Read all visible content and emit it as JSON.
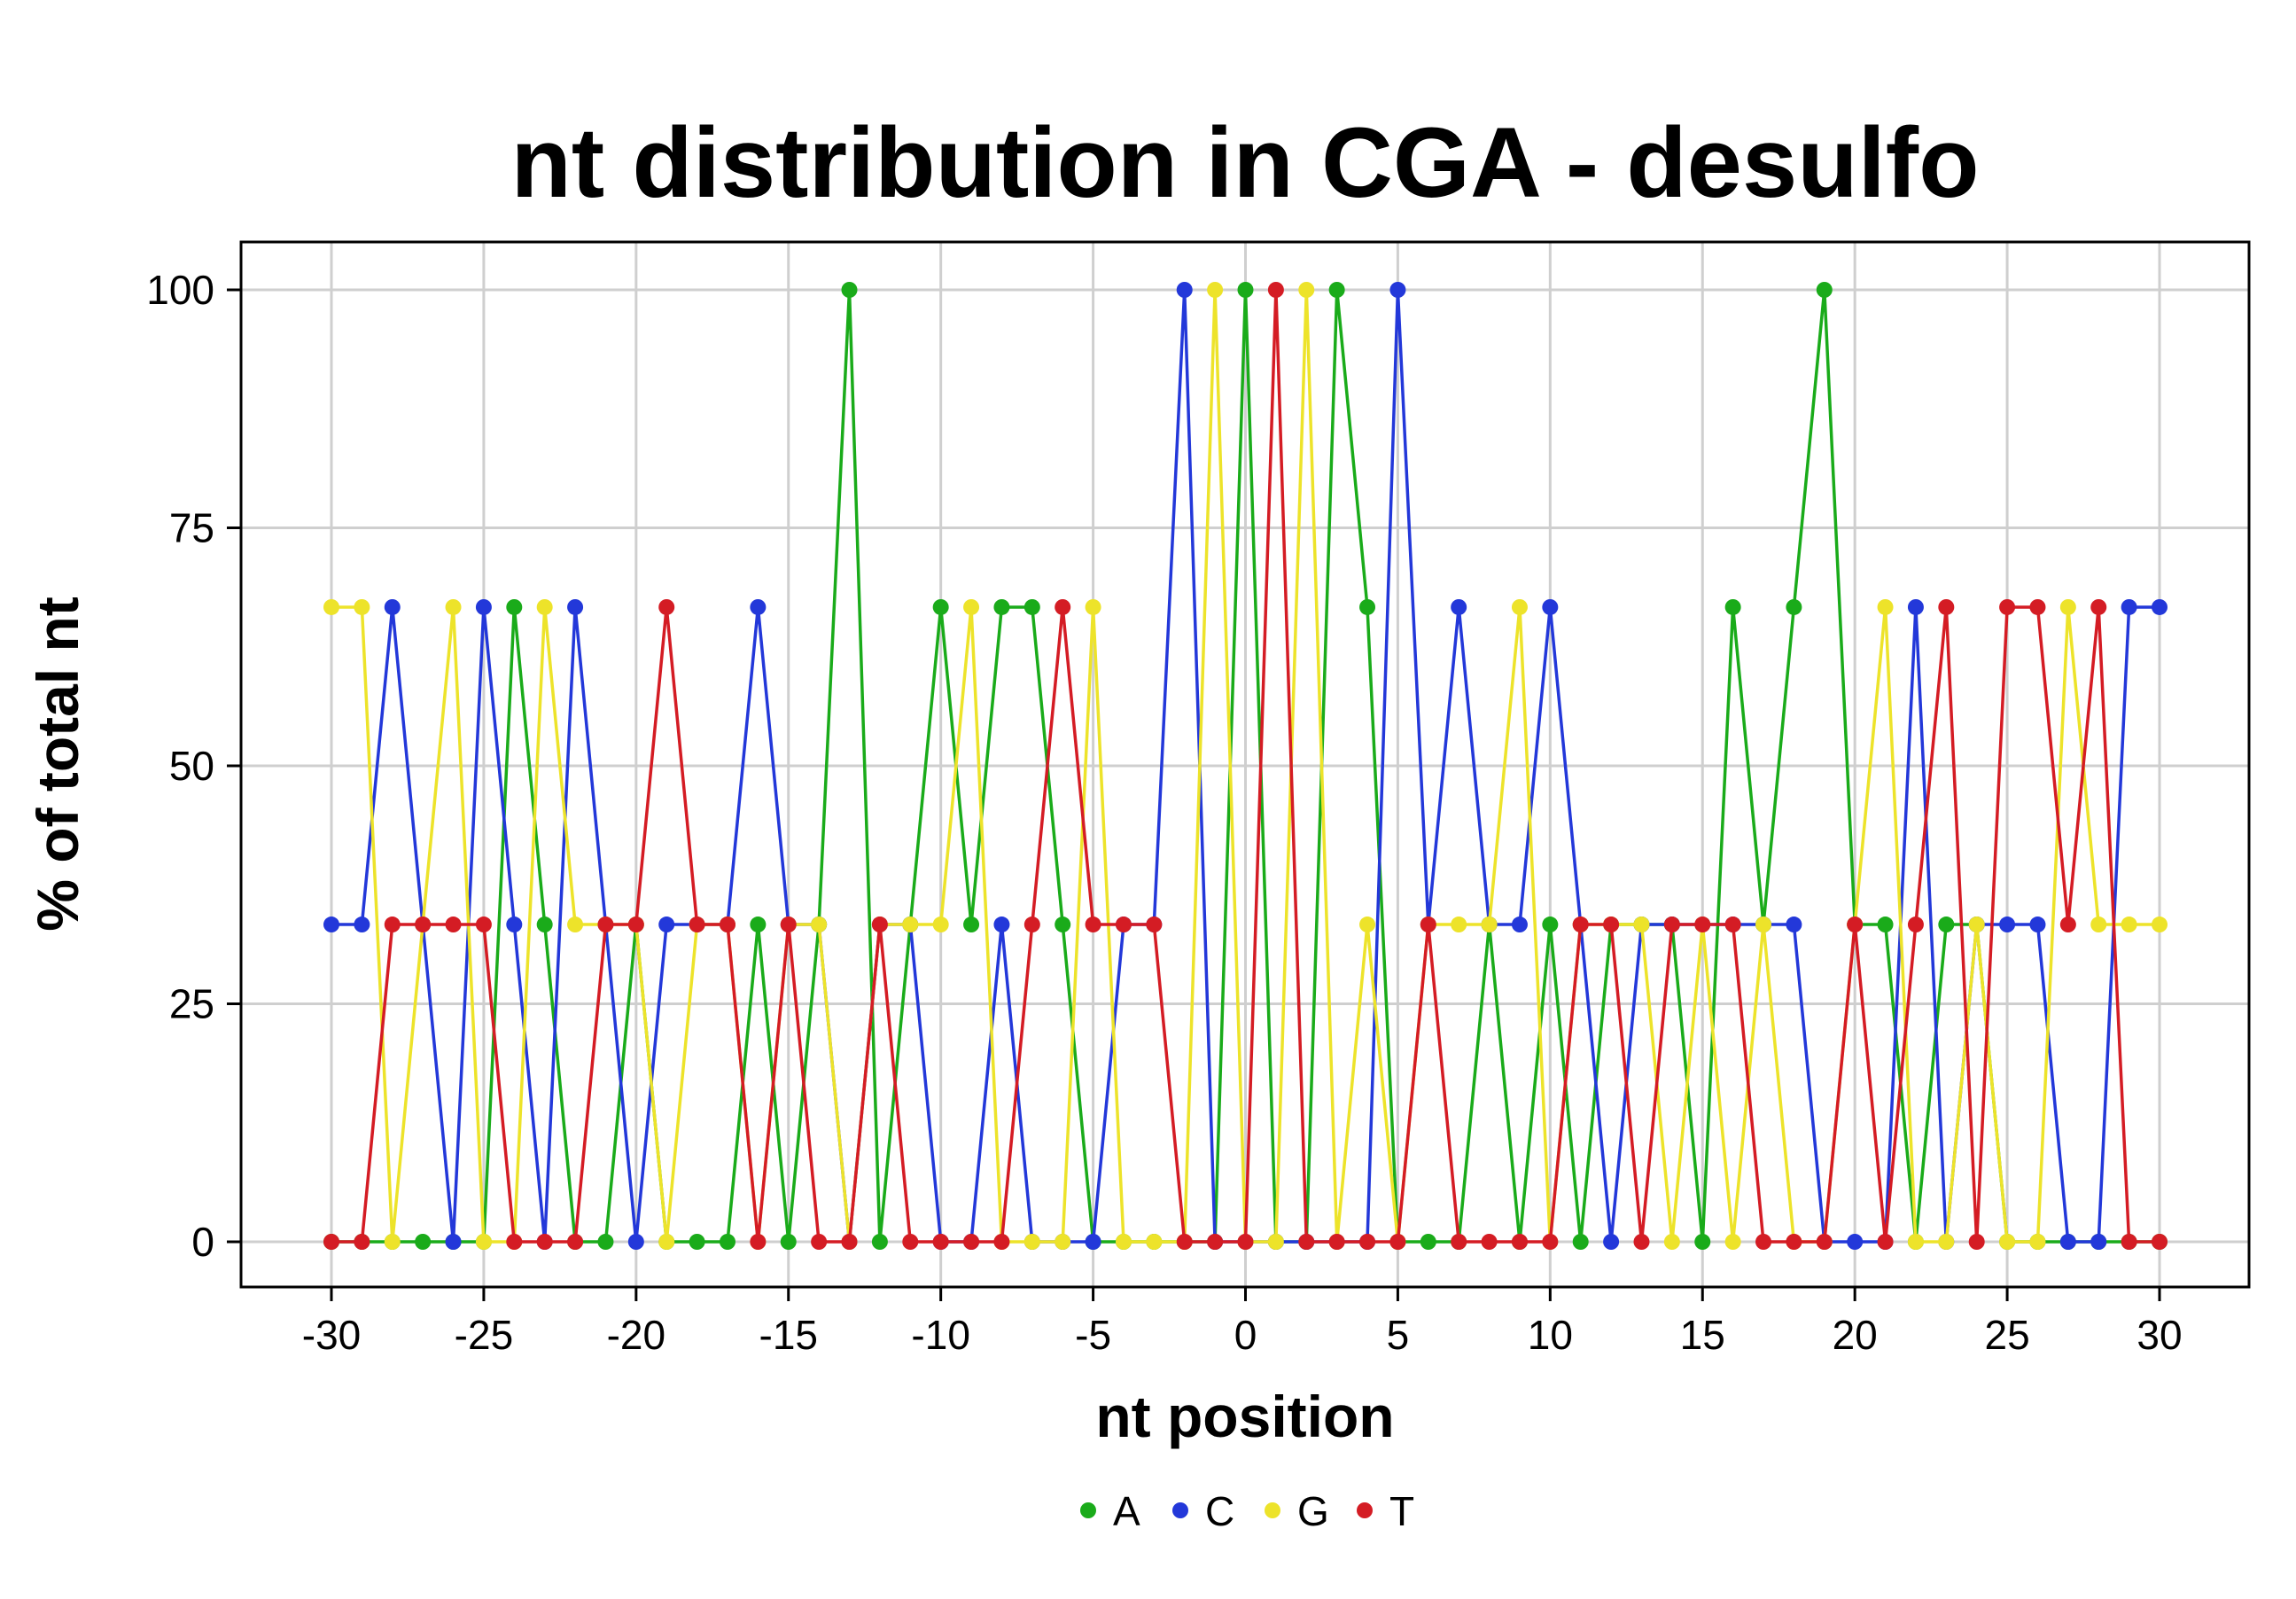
{
  "chart_data": {
    "type": "line",
    "title": "nt distribution in CGA - desulfo",
    "xlabel": "nt position",
    "ylabel": "% of total nt",
    "xlim": [
      -30,
      30
    ],
    "ylim": [
      0,
      100
    ],
    "xticks": [
      "-30",
      "-25",
      "-20",
      "-15",
      "-10",
      "-5",
      "0",
      "5",
      "10",
      "15",
      "20",
      "25",
      "30"
    ],
    "yticks": [
      "0",
      "25",
      "50",
      "75",
      "100"
    ],
    "grid": true,
    "legend_position": "bottom",
    "x": [
      -30,
      -29,
      -28,
      -27,
      -26,
      -25,
      -24,
      -23,
      -22,
      -21,
      -20,
      -19,
      -18,
      -17,
      -16,
      -15,
      -14,
      -13,
      -12,
      -11,
      -10,
      -9,
      -8,
      -7,
      -6,
      -5,
      -4,
      -3,
      -2,
      -1,
      0,
      1,
      2,
      3,
      4,
      5,
      6,
      7,
      8,
      9,
      10,
      11,
      12,
      13,
      14,
      15,
      16,
      17,
      18,
      19,
      20,
      21,
      22,
      23,
      24,
      25,
      26,
      27,
      28,
      29,
      30
    ],
    "series": [
      {
        "name": "A",
        "color": "#1aab1a",
        "values": [
          0,
          0,
          0,
          0,
          0,
          0,
          66.67,
          33.33,
          0,
          0,
          33.33,
          0,
          0,
          0,
          33.33,
          0,
          33.33,
          100,
          0,
          33.33,
          66.67,
          33.33,
          66.67,
          66.67,
          33.33,
          0,
          0,
          0,
          0,
          0,
          100,
          0,
          0,
          100,
          66.67,
          0,
          0,
          0,
          33.33,
          0,
          33.33,
          0,
          33.33,
          33.33,
          33.33,
          0,
          66.67,
          33.33,
          66.67,
          100,
          33.33,
          33.33,
          0,
          33.33,
          33.33,
          0,
          0,
          0,
          0,
          0,
          0
        ]
      },
      {
        "name": "C",
        "color": "#2338d9",
        "values": [
          33.33,
          33.33,
          66.67,
          33.33,
          0,
          66.67,
          33.33,
          0,
          66.67,
          33.33,
          0,
          33.33,
          33.33,
          33.33,
          66.67,
          33.33,
          33.33,
          0,
          33.33,
          33.33,
          0,
          0,
          33.33,
          0,
          0,
          0,
          33.33,
          33.33,
          100,
          0,
          0,
          0,
          0,
          0,
          0,
          100,
          33.33,
          66.67,
          33.33,
          33.33,
          66.67,
          33.33,
          0,
          33.33,
          33.33,
          33.33,
          33.33,
          33.33,
          33.33,
          0,
          0,
          0,
          66.67,
          0,
          33.33,
          33.33,
          33.33,
          0,
          0,
          66.67,
          66.67
        ]
      },
      {
        "name": "G",
        "color": "#ede32a",
        "values": [
          66.67,
          66.67,
          0,
          33.33,
          66.67,
          0,
          0,
          66.67,
          33.33,
          33.33,
          33.33,
          0,
          33.33,
          33.33,
          0,
          33.33,
          33.33,
          0,
          33.33,
          33.33,
          33.33,
          66.67,
          0,
          0,
          0,
          66.67,
          0,
          0,
          0,
          100,
          0,
          0,
          100,
          0,
          33.33,
          0,
          33.33,
          33.33,
          33.33,
          66.67,
          0,
          33.33,
          33.33,
          33.33,
          0,
          33.33,
          0,
          33.33,
          0,
          0,
          33.33,
          66.67,
          0,
          0,
          33.33,
          0,
          0,
          66.67,
          33.33,
          33.33,
          33.33
        ]
      },
      {
        "name": "T",
        "color": "#d41c24",
        "values": [
          0,
          0,
          33.33,
          33.33,
          33.33,
          33.33,
          0,
          0,
          0,
          33.33,
          33.33,
          66.67,
          33.33,
          33.33,
          0,
          33.33,
          0,
          0,
          33.33,
          0,
          0,
          0,
          0,
          33.33,
          66.67,
          33.33,
          33.33,
          33.33,
          0,
          0,
          0,
          100,
          0,
          0,
          0,
          0,
          33.33,
          0,
          0,
          0,
          0,
          33.33,
          33.33,
          0,
          33.33,
          33.33,
          33.33,
          0,
          0,
          0,
          33.33,
          0,
          33.33,
          66.67,
          0,
          66.67,
          66.67,
          33.33,
          66.67,
          0,
          0
        ]
      }
    ]
  }
}
